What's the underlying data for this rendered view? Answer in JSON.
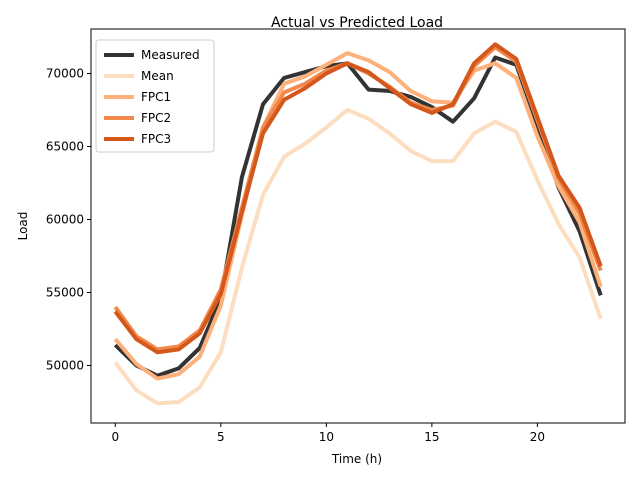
{
  "chart_data": {
    "type": "line",
    "title": "Actual vs Predicted Load",
    "xlabel": "Time (h)",
    "ylabel": "Load",
    "xlim": [
      -1.15,
      24.15
    ],
    "ylim": [
      46060,
      73050
    ],
    "xticks": [
      0,
      5,
      10,
      15,
      20
    ],
    "yticks": [
      50000,
      55000,
      60000,
      65000,
      70000
    ],
    "grid": false,
    "legend_position": "top-left",
    "x": [
      0,
      1,
      2,
      3,
      4,
      5,
      6,
      7,
      8,
      9,
      10,
      11,
      12,
      13,
      14,
      15,
      16,
      17,
      18,
      19,
      20,
      21,
      22,
      23
    ],
    "series": [
      {
        "name": "Measured",
        "color": "#333333",
        "values": [
          51400,
          50000,
          49300,
          49800,
          51200,
          54600,
          62900,
          67900,
          69700,
          70100,
          70500,
          70700,
          68900,
          68800,
          68400,
          67700,
          66700,
          68300,
          71100,
          70600,
          66500,
          62200,
          59200,
          54800
        ]
      },
      {
        "name": "Mean",
        "color": "#fdddc0",
        "values": [
          50200,
          48300,
          47400,
          47500,
          48500,
          50900,
          56700,
          61700,
          64300,
          65200,
          66300,
          67500,
          66900,
          65900,
          64700,
          64000,
          64000,
          65900,
          66700,
          66000,
          62700,
          59700,
          57400,
          53200
        ]
      },
      {
        "name": "FPC1",
        "color": "#fdb07a",
        "values": [
          51800,
          50100,
          49100,
          49400,
          50600,
          54100,
          60300,
          66300,
          69300,
          69800,
          70600,
          71400,
          70900,
          70100,
          68800,
          68100,
          68000,
          70200,
          70700,
          69700,
          65700,
          62300,
          59800,
          55400
        ]
      },
      {
        "name": "FPC2",
        "color": "#f2894c",
        "values": [
          54000,
          52000,
          51100,
          51300,
          52400,
          55200,
          60800,
          66300,
          68700,
          69300,
          70200,
          70700,
          70000,
          69100,
          68000,
          67500,
          67800,
          70500,
          71800,
          70800,
          66800,
          62800,
          60400,
          56500
        ]
      },
      {
        "name": "FPC3",
        "color": "#d4571c",
        "values": [
          53700,
          51800,
          50900,
          51100,
          52200,
          54900,
          60500,
          65900,
          68200,
          69000,
          70000,
          70700,
          70100,
          69000,
          67900,
          67300,
          67900,
          70700,
          72000,
          71000,
          67000,
          63000,
          60800,
          56800
        ]
      }
    ]
  }
}
